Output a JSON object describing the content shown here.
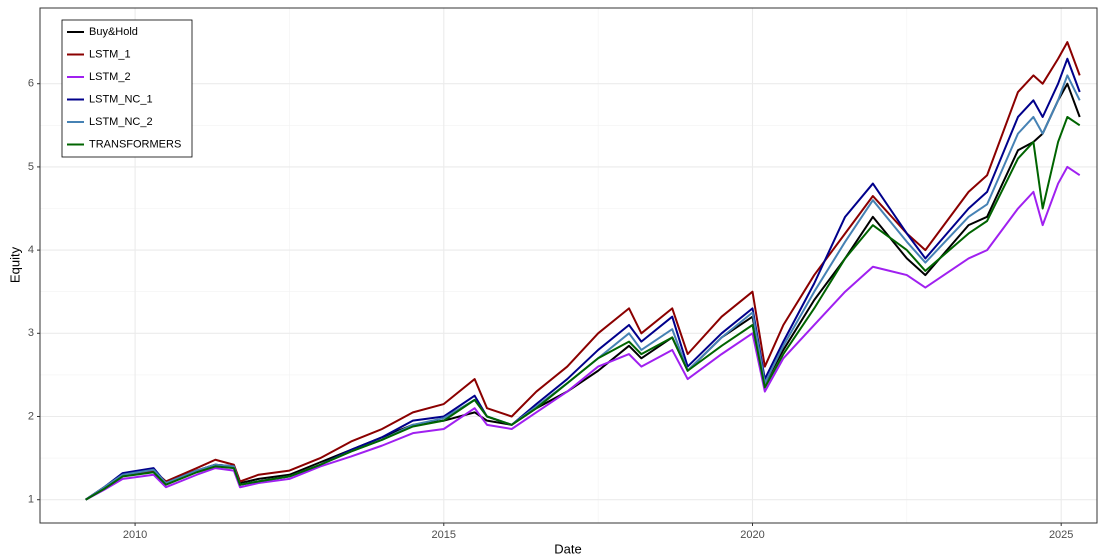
{
  "chart_data": {
    "type": "line",
    "x_label": "Date",
    "y_label": "Equity",
    "x": [
      2009.2,
      2009.5,
      2009.8,
      2010.3,
      2010.5,
      2011.0,
      2011.3,
      2011.6,
      2011.7,
      2012.0,
      2012.5,
      2013.0,
      2013.5,
      2014.0,
      2014.5,
      2015.0,
      2015.5,
      2015.7,
      2016.1,
      2016.5,
      2017.0,
      2017.5,
      2018.0,
      2018.2,
      2018.7,
      2018.95,
      2019.5,
      2020.0,
      2020.2,
      2020.5,
      2021.0,
      2021.5,
      2021.95,
      2022.5,
      2022.8,
      2023.5,
      2023.8,
      2024.3,
      2024.55,
      2024.7,
      2024.95,
      2025.1,
      2025.3
    ],
    "series": [
      {
        "name": "Buy&Hold",
        "color": "#000000",
        "values": [
          1.0,
          1.15,
          1.3,
          1.35,
          1.2,
          1.35,
          1.42,
          1.4,
          1.2,
          1.25,
          1.3,
          1.45,
          1.6,
          1.75,
          1.9,
          1.95,
          2.05,
          1.95,
          1.9,
          2.1,
          2.3,
          2.55,
          2.85,
          2.7,
          2.95,
          2.55,
          2.95,
          3.2,
          2.4,
          2.8,
          3.4,
          3.9,
          4.4,
          3.9,
          3.7,
          4.3,
          4.4,
          5.2,
          5.3,
          5.4,
          5.8,
          6.0,
          5.6
        ]
      },
      {
        "name": "LSTM_1",
        "color": "#8b0000",
        "values": [
          1.0,
          1.15,
          1.3,
          1.35,
          1.22,
          1.38,
          1.48,
          1.42,
          1.22,
          1.3,
          1.35,
          1.5,
          1.7,
          1.85,
          2.05,
          2.15,
          2.45,
          2.1,
          2.0,
          2.3,
          2.6,
          3.0,
          3.3,
          3.0,
          3.3,
          2.75,
          3.2,
          3.5,
          2.6,
          3.1,
          3.7,
          4.2,
          4.65,
          4.2,
          4.0,
          4.7,
          4.9,
          5.9,
          6.1,
          6.0,
          6.3,
          6.5,
          6.1
        ]
      },
      {
        "name": "LSTM_2",
        "color": "#a020f0",
        "values": [
          1.0,
          1.12,
          1.25,
          1.3,
          1.15,
          1.3,
          1.38,
          1.35,
          1.15,
          1.2,
          1.25,
          1.4,
          1.52,
          1.65,
          1.8,
          1.85,
          2.1,
          1.9,
          1.85,
          2.05,
          2.3,
          2.6,
          2.75,
          2.6,
          2.8,
          2.45,
          2.75,
          3.0,
          2.3,
          2.7,
          3.1,
          3.5,
          3.8,
          3.7,
          3.55,
          3.9,
          4.0,
          4.5,
          4.7,
          4.3,
          4.8,
          5.0,
          4.9
        ]
      },
      {
        "name": "LSTM_NC_1",
        "color": "#00008b",
        "values": [
          1.0,
          1.15,
          1.32,
          1.38,
          1.2,
          1.35,
          1.42,
          1.4,
          1.18,
          1.22,
          1.28,
          1.42,
          1.6,
          1.75,
          1.95,
          2.0,
          2.25,
          2.0,
          1.9,
          2.15,
          2.45,
          2.8,
          3.1,
          2.9,
          3.2,
          2.6,
          3.0,
          3.3,
          2.45,
          2.9,
          3.6,
          4.4,
          4.8,
          4.2,
          3.9,
          4.5,
          4.7,
          5.6,
          5.8,
          5.6,
          6.0,
          6.3,
          5.9
        ]
      },
      {
        "name": "LSTM_NC_2",
        "color": "#4682b4",
        "values": [
          1.0,
          1.15,
          1.3,
          1.36,
          1.2,
          1.35,
          1.42,
          1.4,
          1.18,
          1.22,
          1.28,
          1.42,
          1.58,
          1.72,
          1.9,
          1.98,
          2.2,
          2.0,
          1.9,
          2.12,
          2.4,
          2.7,
          3.0,
          2.8,
          3.05,
          2.55,
          2.95,
          3.25,
          2.4,
          2.85,
          3.5,
          4.1,
          4.6,
          4.1,
          3.85,
          4.4,
          4.55,
          5.4,
          5.6,
          5.4,
          5.8,
          6.1,
          5.8
        ]
      },
      {
        "name": "TRANSFORMERS",
        "color": "#006400",
        "values": [
          1.0,
          1.13,
          1.28,
          1.33,
          1.18,
          1.33,
          1.4,
          1.38,
          1.18,
          1.22,
          1.28,
          1.42,
          1.58,
          1.72,
          1.88,
          1.95,
          2.2,
          2.0,
          1.9,
          2.1,
          2.4,
          2.7,
          2.9,
          2.75,
          2.95,
          2.55,
          2.85,
          3.1,
          2.35,
          2.75,
          3.3,
          3.9,
          4.3,
          4.0,
          3.75,
          4.2,
          4.35,
          5.1,
          5.3,
          4.5,
          5.3,
          5.6,
          5.5
        ]
      }
    ],
    "xlim": [
      2008.46,
      2025.58
    ],
    "xticks": [
      2010,
      2015,
      2020,
      2025
    ],
    "ylim": [
      0.72,
      6.91
    ],
    "yticks": [
      1,
      2,
      3,
      4,
      5,
      6
    ],
    "grid": true,
    "legend": "top-left"
  }
}
